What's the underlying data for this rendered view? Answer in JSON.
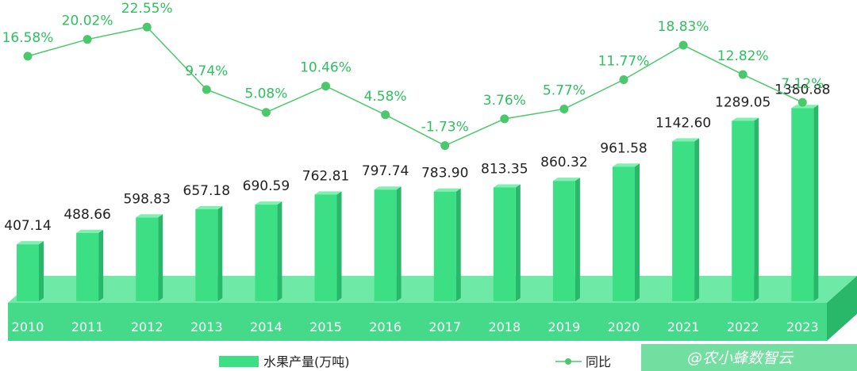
{
  "chart_data": {
    "type": "bar+line",
    "categories": [
      "2010",
      "2011",
      "2012",
      "2013",
      "2014",
      "2015",
      "2016",
      "2017",
      "2018",
      "2019",
      "2020",
      "2021",
      "2022",
      "2023"
    ],
    "series": [
      {
        "name": "水果产量(万吨)",
        "type": "bar",
        "values": [
          407.14,
          488.66,
          598.83,
          657.18,
          690.59,
          762.81,
          797.74,
          783.9,
          813.35,
          860.32,
          961.58,
          1142.6,
          1289.05,
          1380.88
        ],
        "labels": [
          "407.14",
          "488.66",
          "598.83",
          "657.18",
          "690.59",
          "762.81",
          "797.74",
          "783.90",
          "813.35",
          "860.32",
          "961.58",
          "1142.60",
          "1289.05",
          "1380.88"
        ]
      },
      {
        "name": "同比",
        "type": "line",
        "values": [
          16.58,
          20.02,
          22.55,
          9.74,
          5.08,
          10.46,
          4.58,
          -1.73,
          3.76,
          5.77,
          11.77,
          18.83,
          12.82,
          7.12
        ],
        "labels": [
          "16.58%",
          "20.02%",
          "22.55%",
          "9.74%",
          "5.08%",
          "10.46%",
          "4.58%",
          "-1.73%",
          "3.76%",
          "5.77%",
          "11.77%",
          "18.83%",
          "12.82%",
          "7.12%"
        ]
      }
    ],
    "legend_position": "bottom",
    "grid": false
  },
  "colors": {
    "bar_front": "#3ddf85",
    "bar_side": "#29b86a",
    "bar_top": "#7ff0b0",
    "floor_top": "#6feaa6",
    "floor_front": "#45d98a",
    "line": "#4cc86c",
    "pct_label": "#2fbf5f"
  },
  "watermark": {
    "text": "@农小蜂数智云"
  }
}
